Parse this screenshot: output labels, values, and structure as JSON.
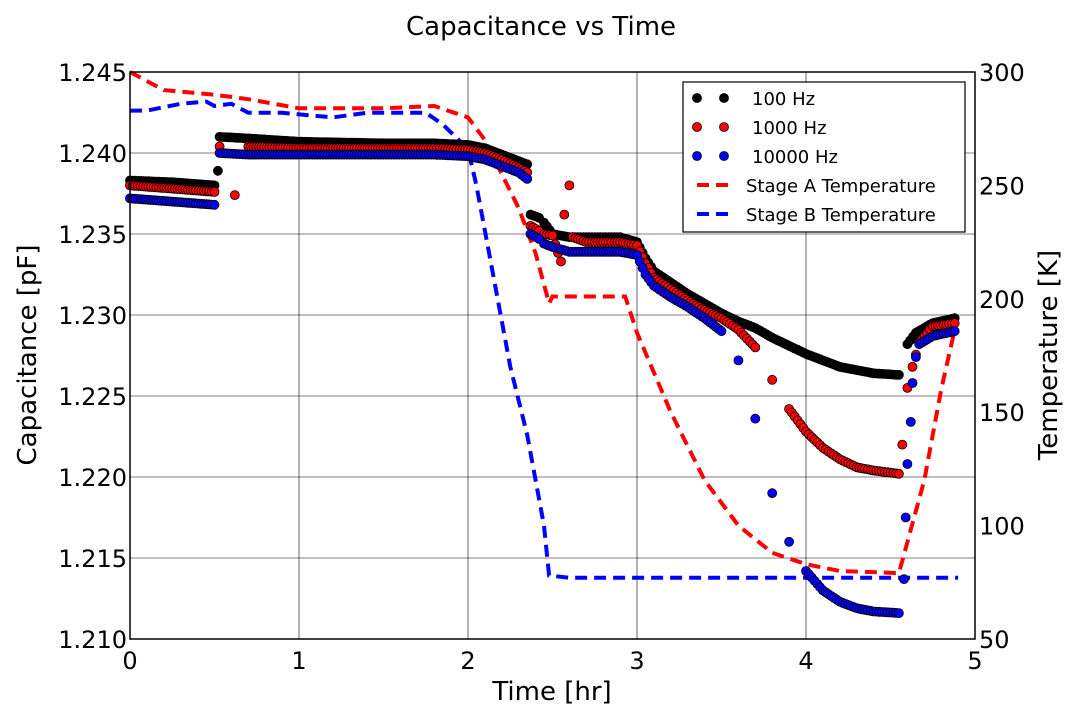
{
  "chart_data": {
    "type": "scatter",
    "title": "Capacitance vs Time",
    "xlabel": "Time [hr]",
    "ylabel": "Capacitance [pF]",
    "y2label": "Temperature [K]",
    "xlim": [
      0,
      5
    ],
    "ylim": [
      1.21,
      1.245
    ],
    "y2lim": [
      50,
      300
    ],
    "xticks": [
      "0",
      "1",
      "2",
      "3",
      "4",
      "5"
    ],
    "yticks": [
      "1.210",
      "1.215",
      "1.220",
      "1.225",
      "1.230",
      "1.235",
      "1.240",
      "1.245"
    ],
    "y2ticks": [
      "50",
      "100",
      "150",
      "200",
      "250",
      "300"
    ],
    "grid": true,
    "legend_position": "top-right",
    "colors": {
      "100 Hz": "#000000",
      "1000 Hz": "#ff0000",
      "10000 Hz": "#0000ff",
      "Stage A Temperature": "#ff0000",
      "Stage B Temperature": "#0000ff"
    },
    "legend": [
      "100 Hz",
      "1000 Hz",
      "10000 Hz",
      "Stage A Temperature",
      "Stage B Temperature"
    ],
    "capacitance_series": [
      {
        "name": "100 Hz",
        "axis": "left",
        "points": [
          [
            0,
            1.2383
          ],
          [
            0.25,
            1.2382
          ],
          [
            0.5,
            1.238
          ],
          [
            0.52,
            1.2389
          ],
          [
            0.53,
            1.241
          ],
          [
            0.7,
            1.2409
          ],
          [
            1.0,
            1.2407
          ],
          [
            1.5,
            1.2406
          ],
          [
            1.8,
            1.2406
          ],
          [
            2.0,
            1.2405
          ],
          [
            2.1,
            1.2403
          ],
          [
            2.2,
            1.2399
          ],
          [
            2.3,
            1.2395
          ],
          [
            2.35,
            1.2393
          ],
          [
            2.37,
            1.2362
          ],
          [
            2.42,
            1.236
          ],
          [
            2.45,
            1.2357
          ],
          [
            2.5,
            1.235
          ],
          [
            2.6,
            1.2348
          ],
          [
            2.7,
            1.2348
          ],
          [
            2.8,
            1.2348
          ],
          [
            2.9,
            1.2348
          ],
          [
            3.0,
            1.2345
          ],
          [
            3.05,
            1.2335
          ],
          [
            3.1,
            1.2327
          ],
          [
            3.2,
            1.232
          ],
          [
            3.3,
            1.2313
          ],
          [
            3.4,
            1.2307
          ],
          [
            3.5,
            1.2301
          ],
          [
            3.6,
            1.2296
          ],
          [
            3.7,
            1.2292
          ],
          [
            3.8,
            1.2286
          ],
          [
            3.9,
            1.2281
          ],
          [
            4.0,
            1.2276
          ],
          [
            4.1,
            1.2272
          ],
          [
            4.2,
            1.2268
          ],
          [
            4.3,
            1.2266
          ],
          [
            4.4,
            1.2264
          ],
          [
            4.55,
            1.2263
          ],
          [
            4.6,
            1.2282
          ],
          [
            4.65,
            1.2289
          ],
          [
            4.75,
            1.2295
          ],
          [
            4.88,
            1.2298
          ]
        ]
      },
      {
        "name": "1000 Hz",
        "axis": "left",
        "points": [
          [
            0,
            1.238
          ],
          [
            0.25,
            1.2378
          ],
          [
            0.5,
            1.2376
          ],
          [
            0.53,
            1.2404
          ],
          [
            0.62,
            1.2374
          ],
          [
            0.7,
            1.2404
          ],
          [
            1.0,
            1.2403
          ],
          [
            1.5,
            1.2403
          ],
          [
            1.8,
            1.2403
          ],
          [
            2.0,
            1.2402
          ],
          [
            2.1,
            1.24
          ],
          [
            2.2,
            1.2396
          ],
          [
            2.3,
            1.2391
          ],
          [
            2.35,
            1.2388
          ],
          [
            2.37,
            1.2355
          ],
          [
            2.42,
            1.2352
          ],
          [
            2.45,
            1.235
          ],
          [
            2.5,
            1.2349
          ],
          [
            2.55,
            1.2333
          ],
          [
            2.57,
            1.2362
          ],
          [
            2.6,
            1.238
          ],
          [
            2.62,
            1.2348
          ],
          [
            2.7,
            1.2345
          ],
          [
            2.8,
            1.2345
          ],
          [
            2.9,
            1.2345
          ],
          [
            3.0,
            1.2343
          ],
          [
            3.05,
            1.2332
          ],
          [
            3.1,
            1.2323
          ],
          [
            3.2,
            1.2316
          ],
          [
            3.3,
            1.2309
          ],
          [
            3.4,
            1.2303
          ],
          [
            3.5,
            1.2298
          ],
          [
            3.6,
            1.2291
          ],
          [
            3.7,
            1.228
          ],
          [
            3.8,
            1.226
          ],
          [
            3.9,
            1.2242
          ],
          [
            4.0,
            1.2228
          ],
          [
            4.1,
            1.2218
          ],
          [
            4.2,
            1.2211
          ],
          [
            4.3,
            1.2206
          ],
          [
            4.4,
            1.2204
          ],
          [
            4.55,
            1.2202
          ],
          [
            4.57,
            1.222
          ],
          [
            4.6,
            1.2255
          ],
          [
            4.63,
            1.2268
          ],
          [
            4.67,
            1.2283
          ],
          [
            4.75,
            1.2293
          ],
          [
            4.88,
            1.2295
          ]
        ]
      },
      {
        "name": "10000 Hz",
        "axis": "left",
        "points": [
          [
            0,
            1.2372
          ],
          [
            0.25,
            1.237
          ],
          [
            0.5,
            1.2368
          ],
          [
            0.53,
            1.24
          ],
          [
            0.7,
            1.2399
          ],
          [
            1.0,
            1.2399
          ],
          [
            1.5,
            1.2399
          ],
          [
            1.8,
            1.2399
          ],
          [
            2.0,
            1.2398
          ],
          [
            2.1,
            1.2396
          ],
          [
            2.2,
            1.2392
          ],
          [
            2.3,
            1.2388
          ],
          [
            2.35,
            1.2384
          ],
          [
            2.37,
            1.235
          ],
          [
            2.42,
            1.2347
          ],
          [
            2.45,
            1.2344
          ],
          [
            2.5,
            1.2342
          ],
          [
            2.6,
            1.2339
          ],
          [
            2.7,
            1.2339
          ],
          [
            2.8,
            1.2339
          ],
          [
            2.9,
            1.2339
          ],
          [
            3.0,
            1.2337
          ],
          [
            3.05,
            1.2325
          ],
          [
            3.1,
            1.2318
          ],
          [
            3.2,
            1.2311
          ],
          [
            3.3,
            1.2305
          ],
          [
            3.4,
            1.2298
          ],
          [
            3.5,
            1.229
          ],
          [
            3.6,
            1.2272
          ],
          [
            3.7,
            1.2236
          ],
          [
            3.8,
            1.219
          ],
          [
            3.9,
            1.216
          ],
          [
            4.0,
            1.2142
          ],
          [
            4.1,
            1.213
          ],
          [
            4.2,
            1.2123
          ],
          [
            4.3,
            1.2119
          ],
          [
            4.4,
            1.2117
          ],
          [
            4.55,
            1.2116
          ],
          [
            4.58,
            1.2137
          ],
          [
            4.59,
            1.2175
          ],
          [
            4.6,
            1.2208
          ],
          [
            4.62,
            1.2234
          ],
          [
            4.63,
            1.2258
          ],
          [
            4.65,
            1.2274
          ],
          [
            4.67,
            1.2282
          ],
          [
            4.75,
            1.2287
          ],
          [
            4.88,
            1.229
          ]
        ]
      }
    ],
    "temperature_series": [
      {
        "name": "Stage A Temperature",
        "axis": "right",
        "style": "dashed",
        "points": [
          [
            0,
            300
          ],
          [
            0.2,
            292
          ],
          [
            0.5,
            290
          ],
          [
            0.7,
            288
          ],
          [
            1.0,
            284
          ],
          [
            1.5,
            284
          ],
          [
            1.8,
            285
          ],
          [
            2.0,
            280
          ],
          [
            2.1,
            270
          ],
          [
            2.2,
            255
          ],
          [
            2.3,
            240
          ],
          [
            2.4,
            220
          ],
          [
            2.48,
            198
          ],
          [
            2.5,
            201
          ],
          [
            2.93,
            201
          ],
          [
            3.0,
            185
          ],
          [
            3.2,
            150
          ],
          [
            3.4,
            120
          ],
          [
            3.6,
            100
          ],
          [
            3.8,
            88
          ],
          [
            4.0,
            83
          ],
          [
            4.2,
            80
          ],
          [
            4.4,
            79.5
          ],
          [
            4.55,
            79
          ],
          [
            4.7,
            120
          ],
          [
            4.8,
            160
          ],
          [
            4.9,
            193
          ]
        ]
      },
      {
        "name": "Stage B Temperature",
        "axis": "right",
        "style": "dashed",
        "points": [
          [
            0,
            283
          ],
          [
            0.1,
            283
          ],
          [
            0.3,
            286
          ],
          [
            0.45,
            287
          ],
          [
            0.5,
            285
          ],
          [
            0.6,
            286
          ],
          [
            0.65,
            284
          ],
          [
            0.7,
            282
          ],
          [
            0.9,
            282
          ],
          [
            1.2,
            280
          ],
          [
            1.4,
            282
          ],
          [
            1.75,
            282
          ],
          [
            1.85,
            277
          ],
          [
            2.0,
            266
          ],
          [
            2.05,
            250
          ],
          [
            2.15,
            210
          ],
          [
            2.25,
            170
          ],
          [
            2.35,
            140
          ],
          [
            2.45,
            100
          ],
          [
            2.48,
            78
          ],
          [
            2.6,
            77
          ],
          [
            3.0,
            77
          ],
          [
            3.5,
            77
          ],
          [
            4.0,
            77
          ],
          [
            4.5,
            77
          ],
          [
            4.9,
            77
          ]
        ]
      }
    ]
  }
}
